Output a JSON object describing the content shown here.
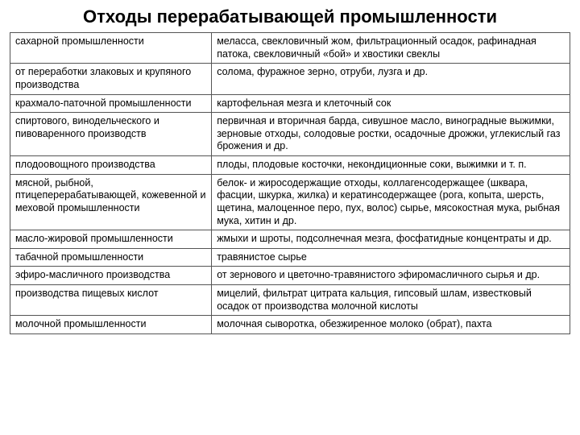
{
  "title": "Отходы перерабатывающей промышленности",
  "table": {
    "columns": [
      "source",
      "waste"
    ],
    "col_widths": [
      "36%",
      "64%"
    ],
    "border_color": "#555555",
    "font_size": 12.5,
    "rows": [
      [
        "сахарной промышленности",
        "меласса, свекловичный жом, фильтрационный осадок, рафинадная патока, свекловичный «бой» и хвостики свеклы"
      ],
      [
        "от переработки злаковых и крупяного производства",
        "солома, фуражное зерно, отруби, лузга и др."
      ],
      [
        "крахмало-паточной промышленности",
        "картофельная мезга и клеточный сок"
      ],
      [
        "спиртового, винодельческого и пивоваренного производств",
        "первичная и вторичная барда, сивушное масло, виноградные выжимки, зерновые отходы, солодовые ростки, осадочные дрожжи, углекислый газ брожения и др."
      ],
      [
        "плодоовощного производства",
        "плоды, плодовые косточки, некондиционные соки, выжимки и т. п."
      ],
      [
        "мясной, рыбной, птицеперерабатывающей, кожевенной и меховой промышленности",
        "белок- и жиросодержащие отходы, коллагенсодержащее (шквара, фасции, шкурка, жилка) и кератинсодержащее (рога, копыта, шерсть, щетина, малоценное перо, пух, волос) сырье, мясокостная мука, рыбная мука, хитин и др."
      ],
      [
        "масло-жировой промышленности",
        "жмыхи и шроты, подсолнечная мезга, фосфатидные концентраты и др."
      ],
      [
        "табачной промышленности",
        "травянистое сырье"
      ],
      [
        "эфиро-масличного производства",
        "от зернового и цветочно-травянистого эфиромасличного сырья и др."
      ],
      [
        "производства пищевых кислот",
        "мицелий, фильтрат цитрата кальция, гипсовый шлам, известковый осадок от производства молочной кислоты"
      ],
      [
        "молочной промышленности",
        "молочная сыворотка, обезжиренное молоко (обрат), пахта"
      ]
    ]
  }
}
